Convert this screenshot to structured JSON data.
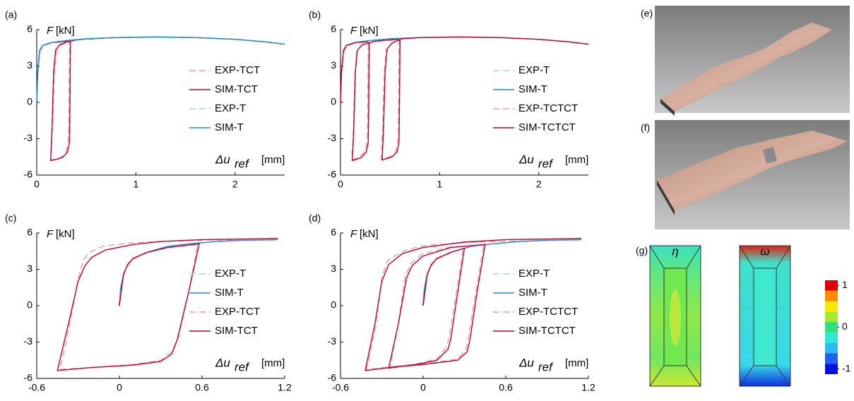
{
  "chart_data": [
    {
      "type": "line",
      "panel_label": "(a)",
      "y_label_symbol": "F",
      "y_label_unit": "[kN]",
      "x_label_symbol": "Δu",
      "x_label_subscript": "ref",
      "x_label_unit": "[mm]",
      "xlim": [
        0,
        2.5
      ],
      "xticks": [
        0,
        1,
        2
      ],
      "ylim": [
        -6,
        6
      ],
      "yticks": [
        -6,
        -3,
        0,
        3,
        6
      ],
      "legend": "center right",
      "series": [
        {
          "name": "EXP-TCT",
          "color": "#f39aa0",
          "dashed": true,
          "x": [
            0,
            0.012,
            0.035,
            0.07,
            0.15,
            0.3,
            0.33,
            0.325,
            0.32,
            0.3,
            0.25,
            0.2,
            0.14,
            0.16,
            0.18,
            0.2,
            0.24,
            0.32,
            0.45,
            0.8,
            1.2,
            1.6,
            2.0,
            2.3,
            2.5
          ],
          "values": [
            0,
            2.3,
            4.2,
            4.65,
            4.9,
            5.0,
            4.9,
            0,
            -3.0,
            -4.0,
            -4.5,
            -4.65,
            -4.75,
            -2,
            2.5,
            4.2,
            4.7,
            5.0,
            5.18,
            5.33,
            5.38,
            5.34,
            5.2,
            4.98,
            4.8
          ]
        },
        {
          "name": "SIM-TCT",
          "color": "#c00030",
          "dashed": false,
          "x": [
            0,
            0.01,
            0.03,
            0.06,
            0.15,
            0.32,
            0.34,
            0.335,
            0.33,
            0.31,
            0.26,
            0.2,
            0.14,
            0.155,
            0.17,
            0.19,
            0.23,
            0.32,
            0.45,
            0.8,
            1.2,
            1.6,
            2.0,
            2.3,
            2.5
          ],
          "values": [
            0,
            2.5,
            4.3,
            4.7,
            4.95,
            5.05,
            4.95,
            0,
            -3.3,
            -4.1,
            -4.55,
            -4.7,
            -4.8,
            -2,
            2.5,
            4.3,
            4.75,
            5.05,
            5.2,
            5.35,
            5.4,
            5.35,
            5.2,
            5.0,
            4.8
          ]
        },
        {
          "name": "EXP-T",
          "color": "#a7d4e6",
          "dashed": true,
          "x": [
            0,
            0.012,
            0.035,
            0.07,
            0.15,
            0.3,
            0.5,
            0.8,
            1.2,
            1.6,
            2.0,
            2.3,
            2.5
          ],
          "values": [
            0,
            2.3,
            4.25,
            4.7,
            4.95,
            5.1,
            5.23,
            5.33,
            5.38,
            5.34,
            5.2,
            4.98,
            4.8
          ]
        },
        {
          "name": "SIM-T",
          "color": "#1b8bd1",
          "dashed": false,
          "x": [
            0,
            0.01,
            0.03,
            0.06,
            0.15,
            0.3,
            0.5,
            0.8,
            1.2,
            1.6,
            2.0,
            2.3,
            2.5
          ],
          "values": [
            0,
            2.5,
            4.3,
            4.7,
            4.95,
            5.1,
            5.25,
            5.35,
            5.4,
            5.35,
            5.2,
            5.0,
            4.8
          ]
        }
      ]
    },
    {
      "type": "line",
      "panel_label": "(b)",
      "y_label_symbol": "F",
      "y_label_unit": "[kN]",
      "x_label_symbol": "Δu",
      "x_label_subscript": "ref",
      "x_label_unit": "[mm]",
      "xlim": [
        0,
        2.5
      ],
      "xticks": [
        0,
        1,
        2
      ],
      "ylim": [
        -6,
        6
      ],
      "yticks": [
        -6,
        -3,
        0,
        3,
        6
      ],
      "legend": "center right",
      "series": [
        {
          "name": "EXP-T",
          "color": "#a7d4e6",
          "dashed": true,
          "x": [
            0,
            0.012,
            0.035,
            0.07,
            0.15,
            0.3,
            0.5,
            0.8,
            1.2,
            1.6,
            2.0,
            2.3,
            2.5
          ],
          "values": [
            0,
            2.3,
            4.25,
            4.7,
            4.95,
            5.1,
            5.23,
            5.33,
            5.38,
            5.34,
            5.2,
            4.98,
            4.8
          ]
        },
        {
          "name": "SIM-T",
          "color": "#1b8bd1",
          "dashed": false,
          "x": [
            0,
            0.01,
            0.03,
            0.06,
            0.15,
            0.3,
            0.5,
            0.8,
            1.2,
            1.6,
            2.0,
            2.3,
            2.5
          ],
          "values": [
            0,
            2.5,
            4.3,
            4.7,
            4.95,
            5.1,
            5.25,
            5.35,
            5.4,
            5.35,
            5.2,
            5.0,
            4.8
          ]
        },
        {
          "name": "EXP-TCTCT",
          "color": "#f39aa0",
          "dashed": true,
          "x": [
            0,
            0.012,
            0.035,
            0.07,
            0.15,
            0.26,
            0.28,
            0.275,
            0.27,
            0.25,
            0.2,
            0.15,
            0.115,
            0.13,
            0.145,
            0.165,
            0.21,
            0.34,
            0.49,
            0.57,
            0.59,
            0.585,
            0.58,
            0.56,
            0.51,
            0.45,
            0.41,
            0.425,
            0.44,
            0.46,
            0.51,
            0.61,
            0.8,
            1.2,
            1.6,
            2.0,
            2.3,
            2.5
          ],
          "values": [
            0,
            2.3,
            4.2,
            4.65,
            4.9,
            4.95,
            4.85,
            0,
            -3.0,
            -4.0,
            -4.45,
            -4.65,
            -4.75,
            -2,
            2.3,
            4.2,
            4.7,
            5.0,
            5.12,
            5.18,
            5.08,
            0,
            -3.0,
            -4.0,
            -4.45,
            -4.6,
            -4.7,
            -2,
            2.3,
            4.3,
            4.85,
            5.22,
            5.33,
            5.38,
            5.34,
            5.2,
            4.98,
            4.8
          ]
        },
        {
          "name": "SIM-TCTCT",
          "color": "#c00030",
          "dashed": false,
          "x": [
            0,
            0.01,
            0.03,
            0.06,
            0.15,
            0.27,
            0.29,
            0.285,
            0.28,
            0.26,
            0.21,
            0.16,
            0.12,
            0.135,
            0.15,
            0.17,
            0.22,
            0.35,
            0.5,
            0.58,
            0.6,
            0.595,
            0.59,
            0.57,
            0.52,
            0.46,
            0.42,
            0.435,
            0.45,
            0.47,
            0.52,
            0.62,
            0.8,
            1.2,
            1.6,
            2.0,
            2.3,
            2.5
          ],
          "values": [
            0,
            2.5,
            4.3,
            4.7,
            4.95,
            5.0,
            4.9,
            0,
            -3.3,
            -4.1,
            -4.55,
            -4.7,
            -4.8,
            -2,
            2.5,
            4.3,
            4.75,
            5.05,
            5.15,
            5.2,
            5.1,
            0,
            -3.3,
            -4.1,
            -4.5,
            -4.65,
            -4.75,
            -2,
            2.5,
            4.4,
            4.9,
            5.25,
            5.35,
            5.4,
            5.35,
            5.2,
            5.0,
            4.8
          ]
        }
      ]
    },
    {
      "type": "line",
      "panel_label": "(c)",
      "y_label_symbol": "F",
      "y_label_unit": "[kN]",
      "x_label_symbol": "Δu",
      "x_label_subscript": "ref",
      "x_label_unit": "[mm]",
      "xlim": [
        -0.6,
        1.2
      ],
      "xticks": [
        -0.6,
        0,
        0.6,
        1.2
      ],
      "ylim": [
        -6,
        6
      ],
      "yticks": [
        -6,
        -3,
        0,
        3,
        6
      ],
      "legend": "center right",
      "series": [
        {
          "name": "EXP-T",
          "color": "#a7d4e6",
          "dashed": true,
          "x": [
            -0.005,
            0.008,
            0.028,
            0.058,
            0.1,
            0.2,
            0.35,
            0.5,
            0.7,
            0.9,
            1.15
          ],
          "values": [
            0,
            1.4,
            2.5,
            3.3,
            3.85,
            4.38,
            4.88,
            5.08,
            5.28,
            5.38,
            5.42
          ]
        },
        {
          "name": "SIM-T",
          "color": "#1b8bd1",
          "dashed": false,
          "x": [
            0,
            0.01,
            0.03,
            0.06,
            0.1,
            0.2,
            0.35,
            0.5,
            0.7,
            0.9,
            1.15
          ],
          "values": [
            0,
            1.5,
            2.6,
            3.4,
            3.9,
            4.4,
            4.9,
            5.1,
            5.3,
            5.4,
            5.45
          ]
        },
        {
          "name": "EXP-TCT",
          "color": "#f39aa0",
          "dashed": true,
          "x": [
            -0.005,
            0.03,
            0.06,
            0.1,
            0.2,
            0.35,
            0.5,
            0.57,
            0.5,
            0.43,
            0.38,
            0.3,
            0.1,
            -0.2,
            -0.43,
            -0.36,
            -0.3,
            -0.26,
            -0.22,
            -0.12,
            0.1,
            0.3,
            0.6,
            0.9,
            1.15
          ],
          "values": [
            0,
            2.5,
            3.3,
            3.85,
            4.38,
            4.78,
            4.98,
            5.05,
            1,
            -2.6,
            -3.8,
            -4.5,
            -4.85,
            -5.1,
            -5.25,
            -1.5,
            2.2,
            3.8,
            4.4,
            4.9,
            5.2,
            5.3,
            5.4,
            5.45,
            5.5
          ]
        },
        {
          "name": "SIM-TCT",
          "color": "#c00030",
          "dashed": false,
          "x": [
            0,
            0.03,
            0.06,
            0.1,
            0.2,
            0.35,
            0.5,
            0.58,
            0.5,
            0.42,
            0.38,
            0.3,
            0.1,
            -0.2,
            -0.45,
            -0.37,
            -0.3,
            -0.25,
            -0.2,
            -0.1,
            0.1,
            0.3,
            0.6,
            0.9,
            1.15
          ],
          "values": [
            0,
            2.6,
            3.4,
            3.9,
            4.4,
            4.8,
            5.0,
            5.1,
            1,
            -2.8,
            -4.0,
            -4.6,
            -4.9,
            -5.1,
            -5.35,
            -1.5,
            2,
            3.3,
            4.0,
            4.6,
            5.05,
            5.3,
            5.45,
            5.5,
            5.55
          ]
        }
      ]
    },
    {
      "type": "line",
      "panel_label": "(d)",
      "y_label_symbol": "F",
      "y_label_unit": "[kN]",
      "x_label_symbol": "Δu",
      "x_label_subscript": "ref",
      "x_label_unit": "[mm]",
      "xlim": [
        -0.6,
        1.2
      ],
      "xticks": [
        -0.6,
        0,
        0.6,
        1.2
      ],
      "ylim": [
        -6,
        6
      ],
      "yticks": [
        -6,
        -3,
        0,
        3,
        6
      ],
      "legend": "center right",
      "series": [
        {
          "name": "EXP-T",
          "color": "#a7d4e6",
          "dashed": true,
          "x": [
            -0.005,
            0.008,
            0.028,
            0.058,
            0.1,
            0.2,
            0.35,
            0.5,
            0.7,
            0.9,
            1.15
          ],
          "values": [
            0,
            1.4,
            2.5,
            3.3,
            3.85,
            4.38,
            4.88,
            5.08,
            5.28,
            5.38,
            5.42
          ]
        },
        {
          "name": "SIM-T",
          "color": "#1b8bd1",
          "dashed": false,
          "x": [
            0,
            0.01,
            0.03,
            0.06,
            0.1,
            0.2,
            0.35,
            0.5,
            0.7,
            0.9,
            1.15
          ],
          "values": [
            0,
            1.5,
            2.6,
            3.4,
            3.9,
            4.4,
            4.9,
            5.1,
            5.3,
            5.4,
            5.45
          ]
        },
        {
          "name": "EXP-TCTCT",
          "color": "#f39aa0",
          "dashed": true,
          "x": [
            0,
            0.03,
            0.06,
            0.1,
            0.2,
            0.29,
            0.24,
            0.19,
            0.17,
            0.1,
            -0.05,
            -0.24,
            -0.18,
            -0.13,
            -0.08,
            0,
            0.2,
            0.44,
            0.38,
            0.33,
            0.31,
            0.25,
            0,
            -0.2,
            -0.41,
            -0.34,
            -0.3,
            -0.26,
            -0.15,
            0,
            0.3,
            0.5,
            0.72
          ],
          "values": [
            0,
            2.5,
            3.3,
            3.85,
            4.35,
            4.7,
            1,
            -2.6,
            -3.4,
            -4.4,
            -4.8,
            -5.05,
            -1.5,
            2.5,
            3.6,
            4.3,
            4.85,
            5.0,
            1,
            -2.6,
            -3.6,
            -4.4,
            -4.8,
            -5.0,
            -5.25,
            -1.5,
            2.3,
            3.7,
            4.5,
            4.95,
            5.2,
            5.3,
            5.35
          ]
        },
        {
          "name": "SIM-TCTCT",
          "color": "#c00030",
          "dashed": false,
          "x": [
            0,
            0.03,
            0.06,
            0.1,
            0.2,
            0.3,
            0.25,
            0.2,
            0.18,
            0.1,
            -0.05,
            -0.25,
            -0.18,
            -0.12,
            -0.08,
            0,
            0.2,
            0.45,
            0.39,
            0.34,
            0.32,
            0.25,
            0,
            -0.2,
            -0.42,
            -0.35,
            -0.3,
            -0.25,
            -0.15,
            0,
            0.3,
            0.6,
            0.9,
            1.15
          ],
          "values": [
            0,
            2.6,
            3.4,
            3.9,
            4.4,
            4.75,
            1,
            -2.8,
            -3.6,
            -4.5,
            -4.85,
            -5.15,
            -1.5,
            2.3,
            3.3,
            4.1,
            4.8,
            5.05,
            1,
            -2.8,
            -3.8,
            -4.5,
            -4.85,
            -5.05,
            -5.35,
            -1.5,
            2.0,
            3.4,
            4.3,
            4.8,
            5.25,
            5.45,
            5.5,
            5.55
          ]
        }
      ]
    }
  ],
  "panels": {
    "e": "(e)",
    "f": "(f)",
    "g": "(g)"
  },
  "contour": {
    "titles": [
      "η",
      "ω"
    ],
    "colorbar_lim": [
      -1,
      1
    ],
    "colorbar_ticks": [
      1,
      0,
      -1
    ],
    "colorbar_colors": [
      "#e00000",
      "#ff8a00",
      "#ffe600",
      "#a8e830",
      "#2fe080",
      "#30e8d8",
      "#30b8f0",
      "#2060f0",
      "#0010e0"
    ]
  }
}
